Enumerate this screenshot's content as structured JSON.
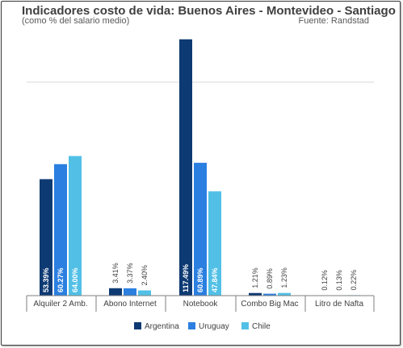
{
  "title": "Indicadores costo de vida: Buenos Aires - Montevideo - Santiago",
  "subtitle": "(como % del salario medio)",
  "source": "Fuente: Randstad",
  "colors": {
    "Argentina": "#0e3a73",
    "Uruguay": "#2b7fe0",
    "Chile": "#52c0e6",
    "axis": "#7f7f7f",
    "grid": "#d9d9d9"
  },
  "chart_data": {
    "type": "bar",
    "title": "Indicadores costo de vida: Buenos Aires - Montevideo - Santiago",
    "subtitle": "(como % del salario medio)",
    "categories": [
      "Alquiler 2 Amb.",
      "Abono Internet",
      "Notebook",
      "Combo Big Mac",
      "Litro de Nafta"
    ],
    "series": [
      {
        "name": "Argentina",
        "values": [
          53.39,
          3.41,
          117.49,
          1.21,
          0.12
        ],
        "labels": [
          "53.39%",
          "3.41%",
          "117.49%",
          "1.21%",
          "0.12%"
        ]
      },
      {
        "name": "Uruguay",
        "values": [
          60.27,
          3.37,
          60.89,
          0.89,
          0.13
        ],
        "labels": [
          "60.27%",
          "3.37%",
          "60.89%",
          "0.89%",
          "0.13%"
        ]
      },
      {
        "name": "Chile",
        "values": [
          64.0,
          2.4,
          47.84,
          1.23,
          0.22
        ],
        "labels": [
          "64.00%",
          "2.40%",
          "47.84%",
          "1.23%",
          "0.22%"
        ]
      }
    ],
    "ylim": [
      0,
      120
    ],
    "grid": true,
    "legend": "bottom"
  }
}
